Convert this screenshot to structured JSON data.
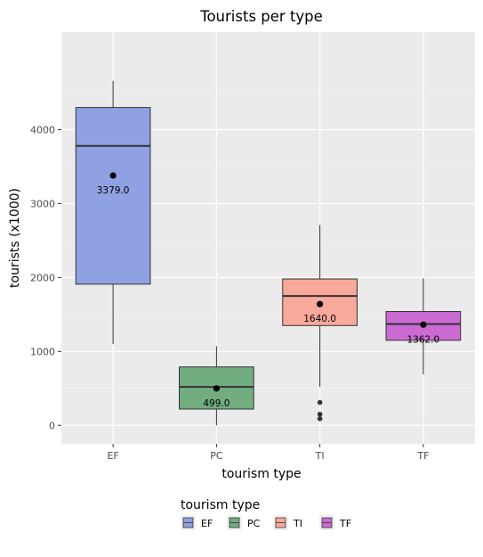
{
  "chart_data": {
    "type": "box",
    "title": "Tourists per type",
    "xlabel": "tourism type",
    "ylabel": "tourists (x1000)",
    "categories": [
      "EF",
      "PC",
      "TI",
      "TF"
    ],
    "ylim": [
      -250,
      5320
    ],
    "yticks": [
      0,
      1000,
      2000,
      3000,
      4000
    ],
    "grid": true,
    "legend": {
      "title": "tourism type",
      "position": "bottom"
    },
    "colors": [
      "#8fa1e2",
      "#72ad80",
      "#f8a99b",
      "#cb6ad3"
    ],
    "boxes": [
      {
        "category": "EF",
        "whisker_low": 1100,
        "q1": 1910,
        "median": 3780,
        "q3": 4300,
        "whisker_high": 4660,
        "mean": 3379.0,
        "mean_label": "3379.0",
        "outliers": []
      },
      {
        "category": "PC",
        "whisker_low": 0,
        "q1": 220,
        "median": 520,
        "q3": 790,
        "whisker_high": 1070,
        "mean": 499.0,
        "mean_label": "499.0",
        "outliers": []
      },
      {
        "category": "TI",
        "whisker_low": 520,
        "q1": 1350,
        "median": 1750,
        "q3": 1980,
        "whisker_high": 2710,
        "mean": 1640.0,
        "mean_label": "1640.0",
        "outliers": [
          310,
          150,
          90
        ]
      },
      {
        "category": "TF",
        "whisker_low": 690,
        "q1": 1150,
        "median": 1370,
        "q3": 1540,
        "whisker_high": 1990,
        "mean": 1362.0,
        "mean_label": "1362.0",
        "outliers": []
      }
    ]
  }
}
